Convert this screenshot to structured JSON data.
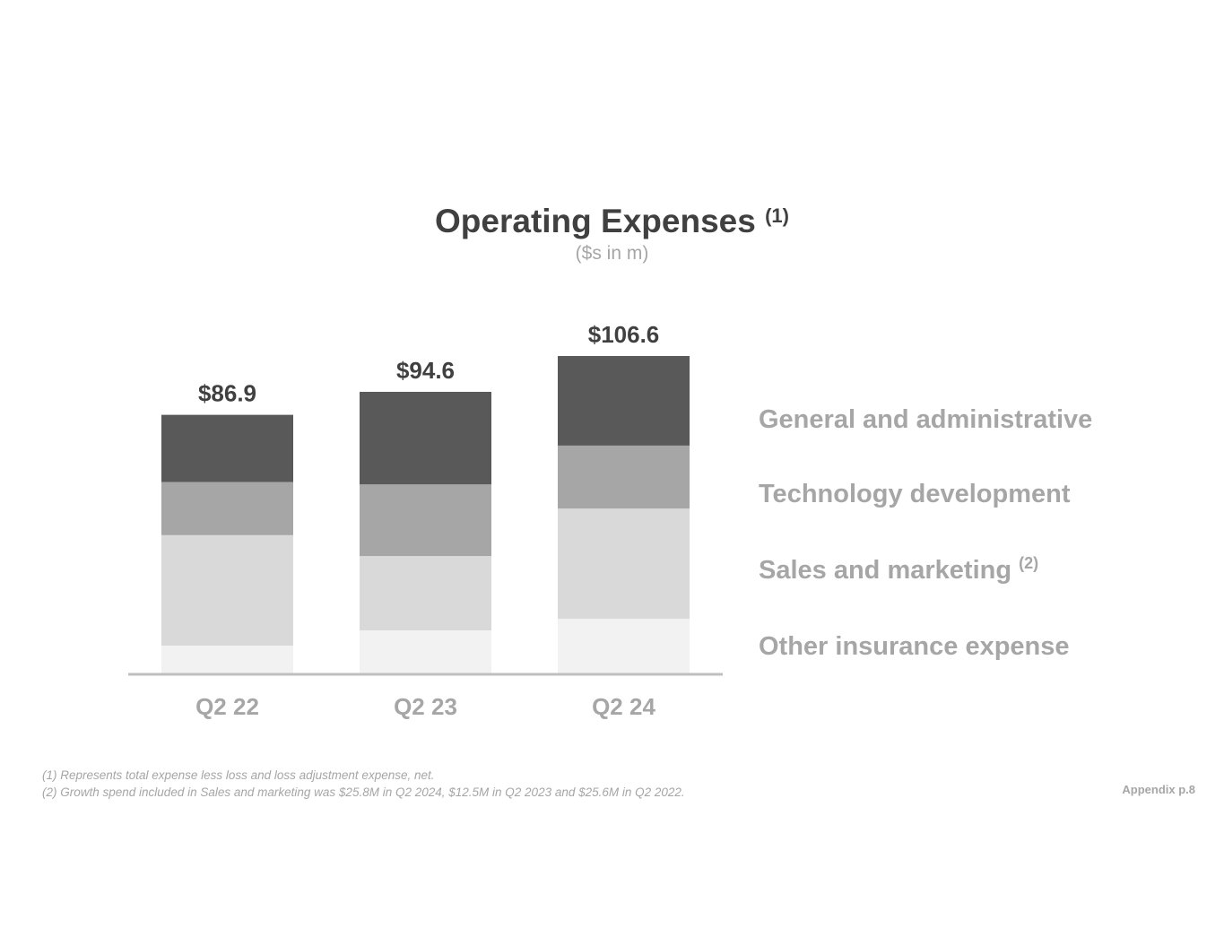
{
  "chart_data": {
    "type": "bar",
    "stacked": true,
    "title": "Operating Expenses",
    "title_footnote": "(1)",
    "subtitle": "($s in m)",
    "categories": [
      "Q2 22",
      "Q2 23",
      "Q2 24"
    ],
    "totals": [
      "$86.9",
      "$94.6",
      "$106.6"
    ],
    "total_values": [
      86.9,
      94.6,
      106.6
    ],
    "series": [
      {
        "name": "Other insurance expense",
        "color": "#f2f2f2",
        "values": [
          9.6,
          14.7,
          18.6
        ]
      },
      {
        "name": "Sales and marketing",
        "footnote": "(2)",
        "color": "#d9d9d9",
        "values": [
          37.0,
          24.9,
          36.9
        ]
      },
      {
        "name": "Technology development",
        "color": "#a6a6a6",
        "values": [
          17.8,
          24.0,
          21.1
        ]
      },
      {
        "name": "General and administrative",
        "color": "#595959",
        "values": [
          22.5,
          31.0,
          30.0
        ]
      }
    ],
    "ylim": [
      0,
      120
    ],
    "grid": false,
    "legend_placement": "right"
  },
  "footnotes": [
    "(1) Represents total expense less loss and loss adjustment expense, net.",
    "(2) Growth spend included in Sales and marketing was $25.8M in Q2 2024, $12.5M in Q2 2023 and $25.6M in Q2 2022."
  ],
  "page_label": "Appendix p.8"
}
